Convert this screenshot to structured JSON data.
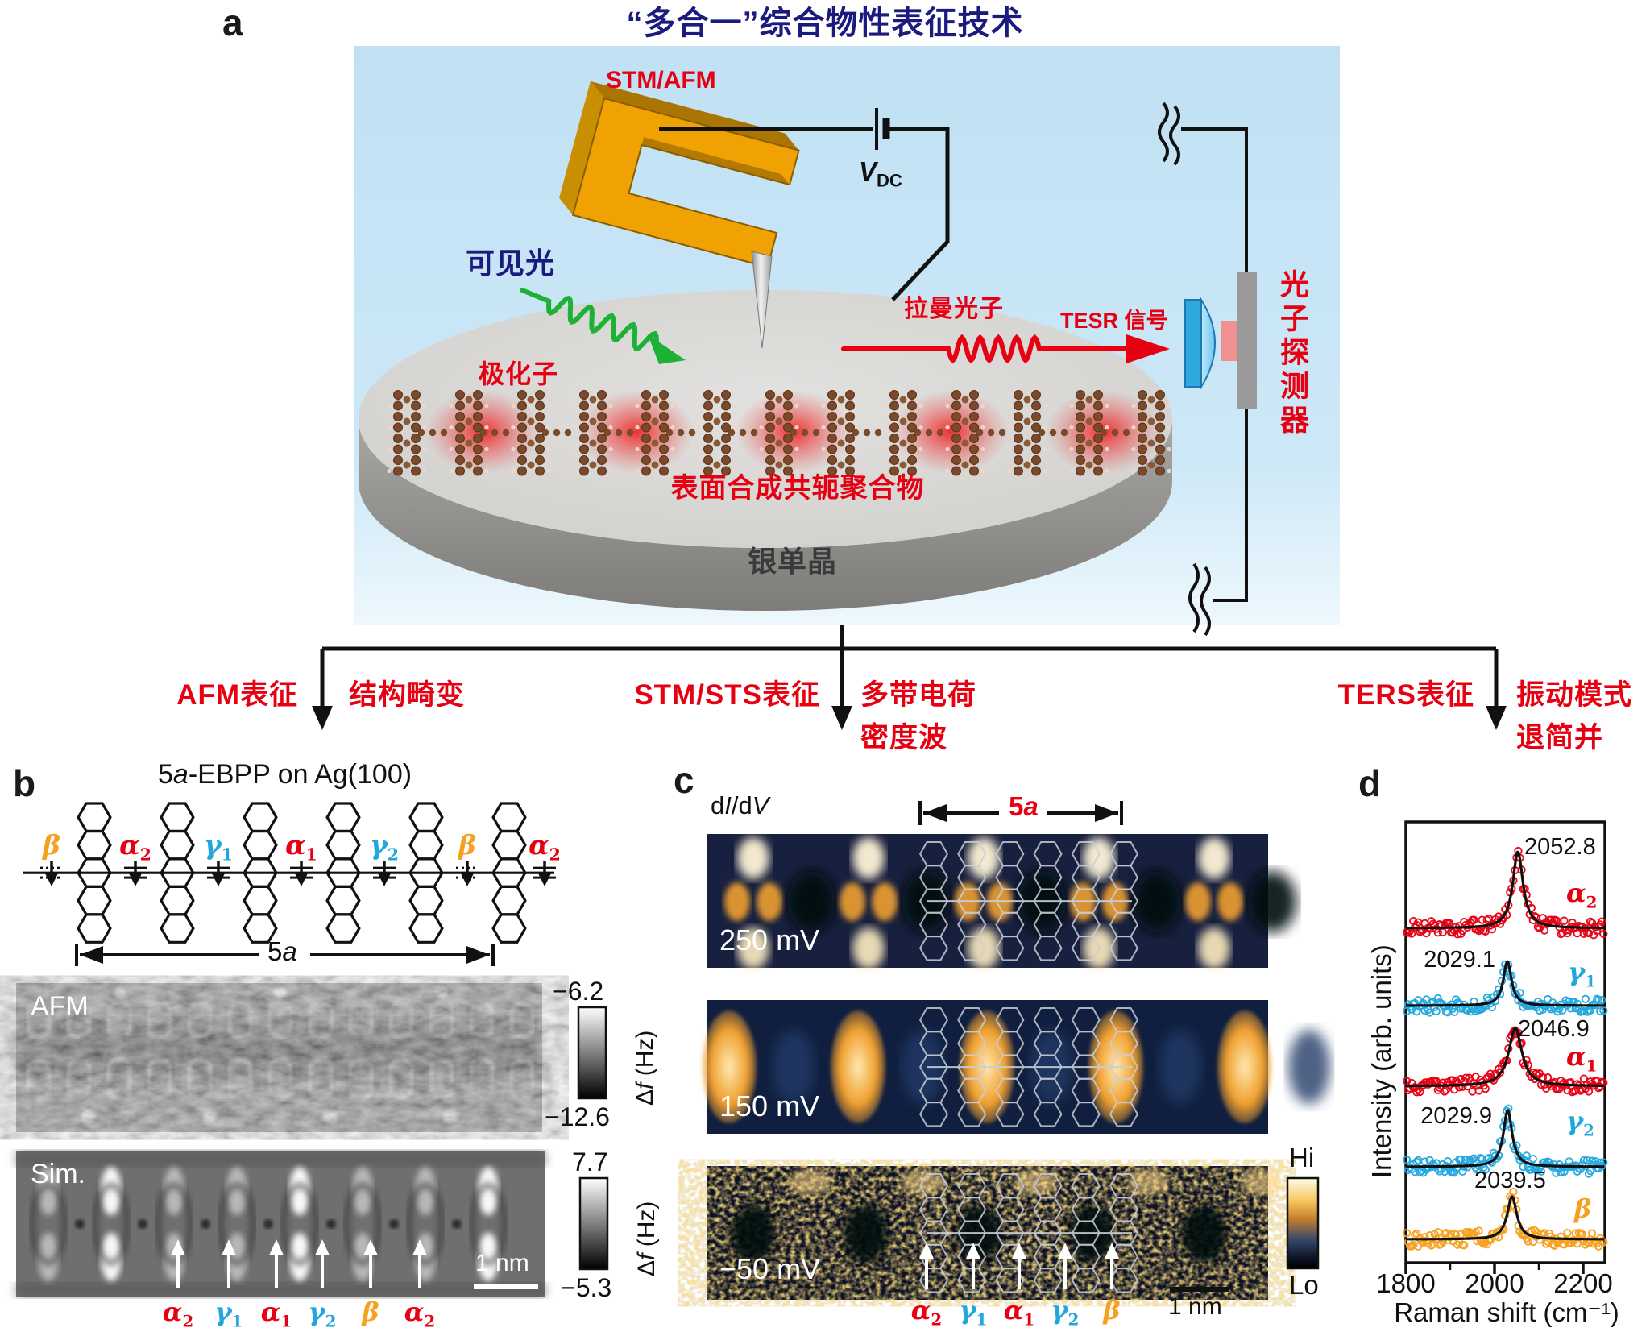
{
  "panel_a": {
    "label": "a",
    "title": "“多合一”综合物性表征技术",
    "stm_afm": "STM/AFM",
    "vdc": {
      "main": "V",
      "sub": "DC"
    },
    "visible_light": "可见光",
    "polaron": "极化子",
    "raman_photon": "拉曼光子",
    "tesr_signal": "TESR 信号",
    "photon_detector": "光子探测器",
    "polymer_label": "表面合成共轭聚合物",
    "substrate_label": "银单晶",
    "branches": [
      {
        "method": "AFM表征",
        "result1": "结构畸变",
        "result2": ""
      },
      {
        "method": "STM/STS表征",
        "result1": "多带电荷",
        "result2": "密度波"
      },
      {
        "method": "TERS表征",
        "result1": "振动模式",
        "result2": "退简并"
      }
    ],
    "colors": {
      "accent_red": "#e60012",
      "title_navy": "#1b1b7e",
      "light_green": "#1db135",
      "panel_blue": "#c2e2f4",
      "fork_orange": "#f0a202"
    }
  },
  "panel_b": {
    "label": "b",
    "title": {
      "t1": "5",
      "t2": "a",
      "t3": "-EBPP on Ag(100)"
    },
    "bond_labels": [
      {
        "base": "β",
        "sub": "",
        "color": "#f5a01e"
      },
      {
        "base": "α",
        "sub": "2",
        "color": "#e60012"
      },
      {
        "base": "γ",
        "sub": "1",
        "color": "#22a6de"
      },
      {
        "base": "α",
        "sub": "1",
        "color": "#e60012"
      },
      {
        "base": "γ",
        "sub": "2",
        "color": "#22a6de"
      },
      {
        "base": "β",
        "sub": "",
        "color": "#f5a01e"
      },
      {
        "base": "α",
        "sub": "2",
        "color": "#e60012"
      }
    ],
    "dim_label": {
      "t1": "5",
      "t2": "a"
    },
    "afm_image_label": "AFM",
    "sim_image_label": "Sim.",
    "afm_scale": {
      "top": "−6.2",
      "bottom": "−12.6",
      "unit1": "Δ",
      "unit2": "f",
      "unit3": " (Hz)"
    },
    "sim_scale": {
      "top": "7.7",
      "bottom": "−5.3",
      "unit1": "Δ",
      "unit2": "f",
      "unit3": " (Hz)"
    },
    "scalebar": "1 nm",
    "sim_arrow_labels": [
      {
        "base": "α",
        "sub": "2",
        "color": "#e60012"
      },
      {
        "base": "γ",
        "sub": "1",
        "color": "#22a6de"
      },
      {
        "base": "α",
        "sub": "1",
        "color": "#e60012"
      },
      {
        "base": "γ",
        "sub": "2",
        "color": "#22a6de"
      },
      {
        "base": "β",
        "sub": "",
        "color": "#f5a01e"
      },
      {
        "base": "α",
        "sub": "2",
        "color": "#e60012"
      }
    ]
  },
  "panel_c": {
    "label": "c",
    "didv": {
      "t1": "d",
      "t2": "I",
      "t3": "/d",
      "t4": "V"
    },
    "dim_label": {
      "t1": "5",
      "t2": "a"
    },
    "maps": [
      {
        "bias": "250 mV"
      },
      {
        "bias": "150 mV"
      },
      {
        "bias": "−50 mV"
      }
    ],
    "colorbar": {
      "hi": "Hi",
      "lo": "Lo"
    },
    "scalebar": "1 nm",
    "arrow_labels": [
      {
        "base": "α",
        "sub": "2",
        "color": "#e60012"
      },
      {
        "base": "γ",
        "sub": "1",
        "color": "#22a6de"
      },
      {
        "base": "α",
        "sub": "1",
        "color": "#e60012"
      },
      {
        "base": "γ",
        "sub": "2",
        "color": "#22a6de"
      },
      {
        "base": "β",
        "sub": "",
        "color": "#f5a01e"
      }
    ]
  },
  "panel_d": {
    "label": "d"
  },
  "chart_data": {
    "type": "line",
    "title": "",
    "xlabel": "Raman shift (cm⁻¹)",
    "ylabel": "Intensity (arb. units)",
    "xlim": [
      1800,
      2250
    ],
    "xticks": [
      "1800",
      "2000",
      "2200"
    ],
    "xticks_minor": [
      1900,
      2100
    ],
    "grid": false,
    "legend_position": "right-inline",
    "series": [
      {
        "name": "alpha2",
        "base": "α",
        "sub": "2",
        "color": "#e60012",
        "peak_center": 2052.8,
        "peak_label": "2052.8",
        "hwhm": 14,
        "rel_height": 1.0
      },
      {
        "name": "gamma1",
        "base": "γ",
        "sub": "1",
        "color": "#22a6de",
        "peak_center": 2029.1,
        "peak_label": "2029.1",
        "hwhm": 11,
        "rel_height": 0.58
      },
      {
        "name": "alpha1",
        "base": "α",
        "sub": "1",
        "color": "#e60012",
        "peak_center": 2046.9,
        "peak_label": "2046.9",
        "hwhm": 18,
        "rel_height": 0.76
      },
      {
        "name": "gamma2",
        "base": "γ",
        "sub": "2",
        "color": "#22a6de",
        "peak_center": 2029.9,
        "peak_label": "2029.9",
        "hwhm": 12,
        "rel_height": 0.74
      },
      {
        "name": "beta",
        "base": "β",
        "sub": "",
        "color": "#f5a01e",
        "peak_center": 2039.5,
        "peak_label": "2039.5",
        "hwhm": 13,
        "rel_height": 0.56
      }
    ],
    "fit_color": "#111111",
    "point_style": "open-circle"
  }
}
